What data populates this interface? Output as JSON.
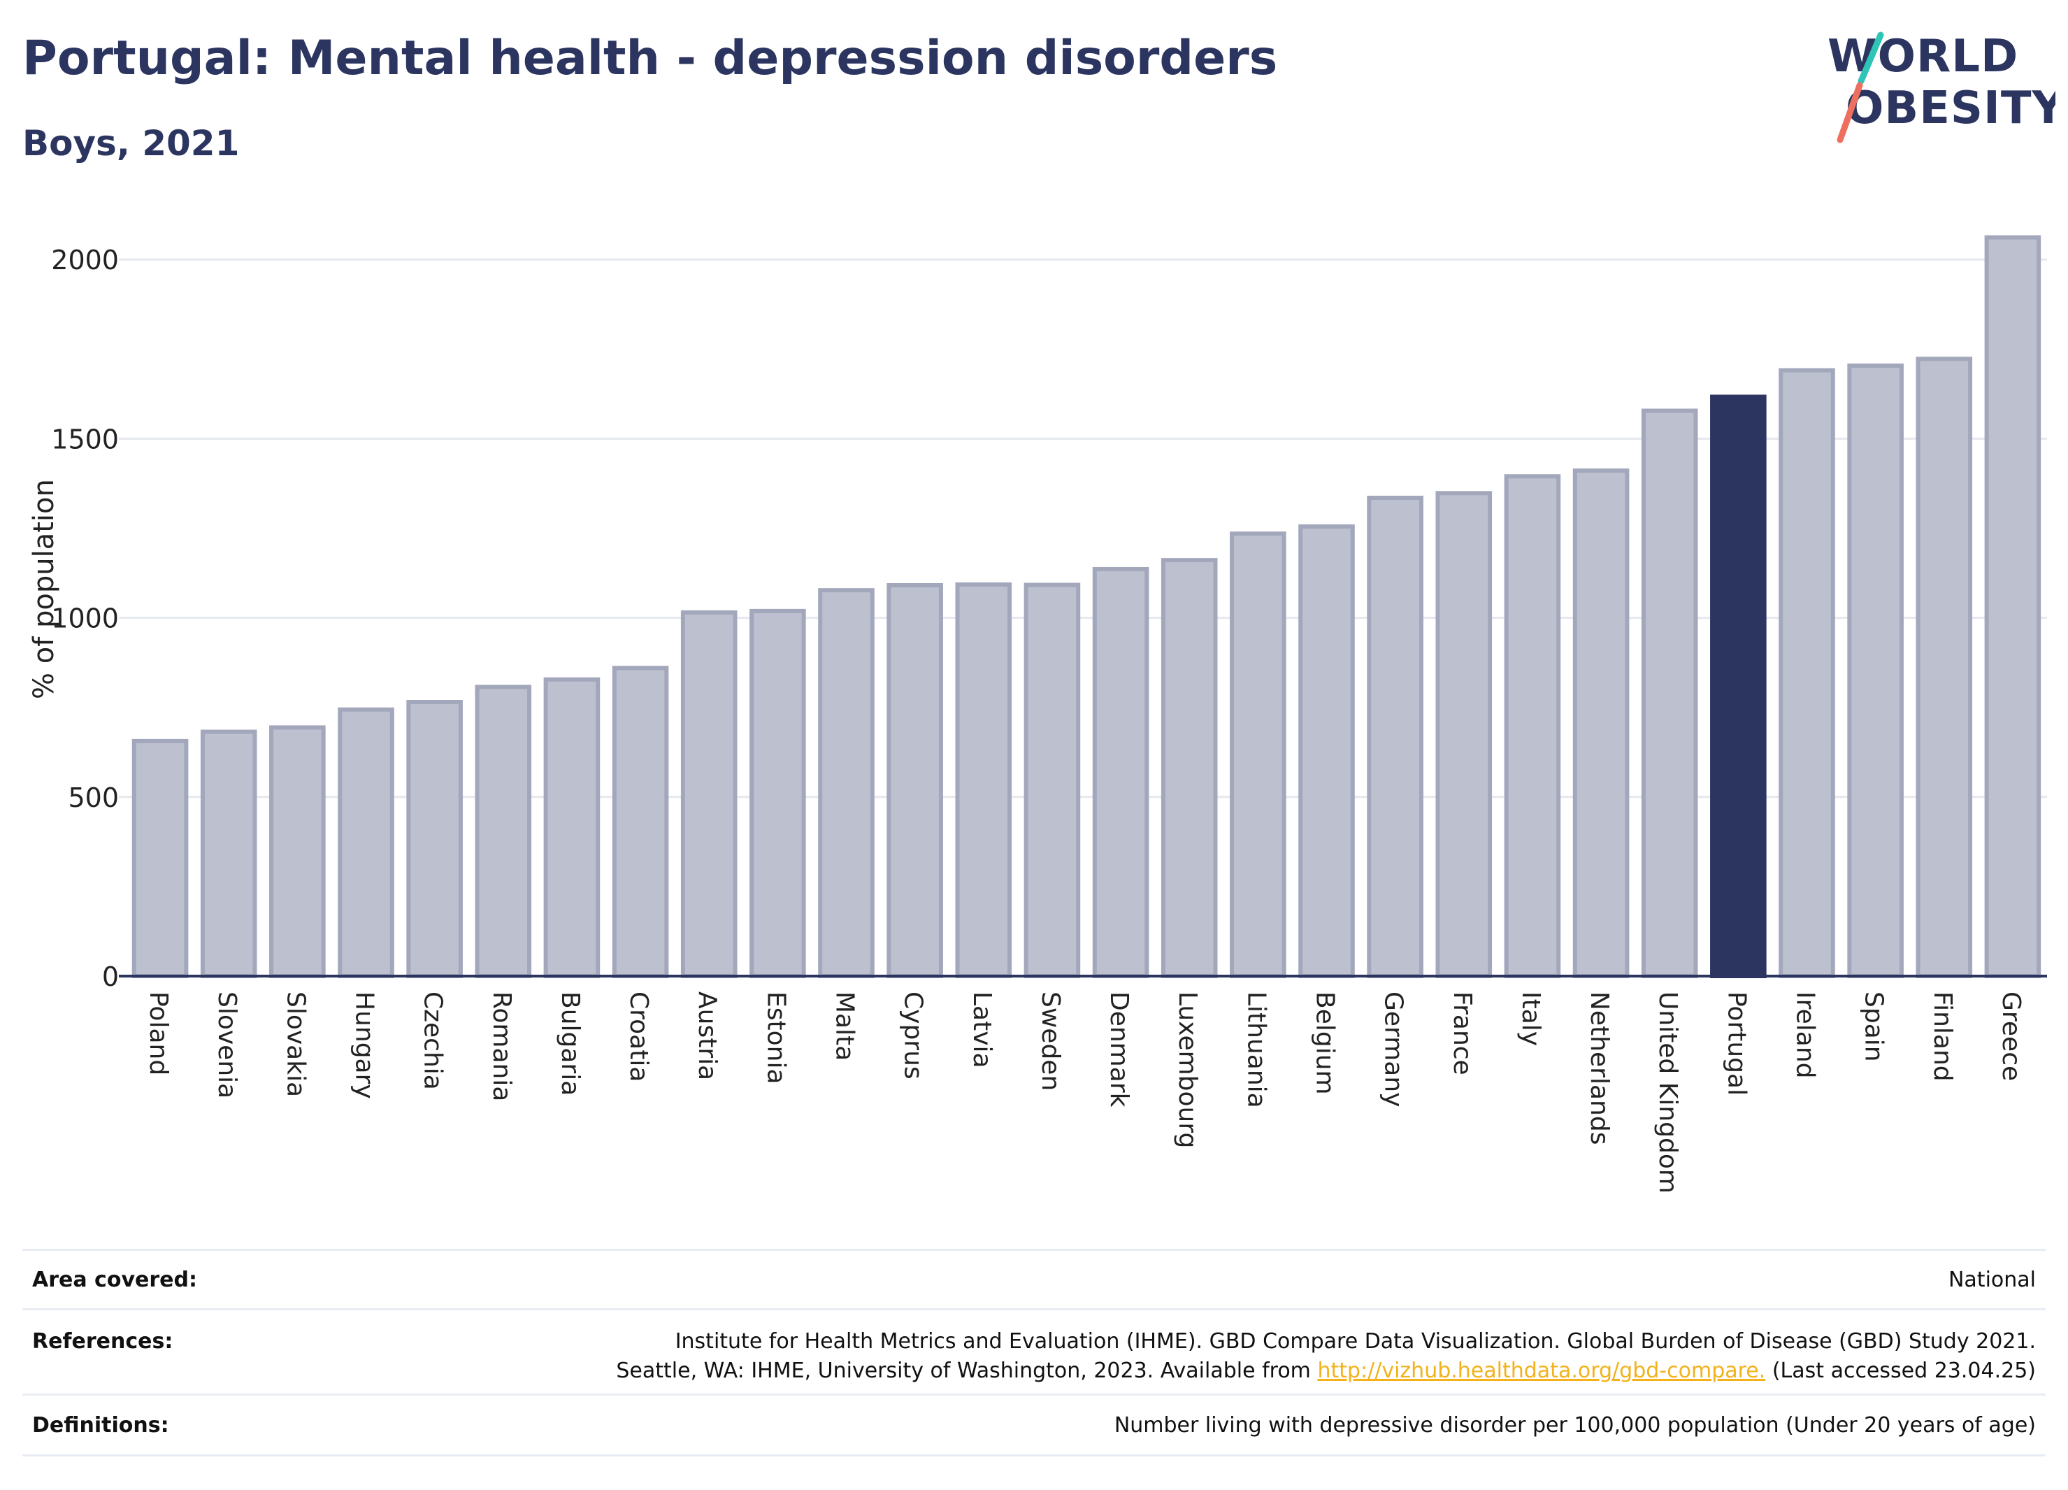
{
  "header": {
    "title": "Portugal: Mental health - depression disorders",
    "subtitle": "Boys, 2021"
  },
  "logo": {
    "line1": "WORLD",
    "line2": "OBESITY"
  },
  "colors": {
    "highlight": "#2b3560",
    "bar_fill": "#bcc0cf",
    "bar_stroke": "#a2a7bb",
    "text": "#2b3560"
  },
  "chart_data": {
    "type": "bar",
    "ylabel": "% of population",
    "ylim": [
      0,
      2100
    ],
    "yticks": [
      0,
      500,
      1000,
      1500,
      2000
    ],
    "grid": true,
    "highlight": "Portugal",
    "categories": [
      "Poland",
      "Slovenia",
      "Slovakia",
      "Hungary",
      "Czechia",
      "Romania",
      "Bulgaria",
      "Croatia",
      "Austria",
      "Estonia",
      "Malta",
      "Cyprus",
      "Latvia",
      "Sweden",
      "Denmark",
      "Luxembourg",
      "Lithuania",
      "Belgium",
      "Germany",
      "France",
      "Italy",
      "Netherlands",
      "United Kingdom",
      "Portugal",
      "Ireland",
      "Spain",
      "Finland",
      "Greece"
    ],
    "values": [
      656,
      682,
      694,
      744,
      765,
      807,
      828,
      860,
      1015,
      1019,
      1077,
      1091,
      1093,
      1092,
      1136,
      1161,
      1235,
      1255,
      1335,
      1348,
      1395,
      1411,
      1578,
      1617,
      1691,
      1704,
      1723,
      2062
    ]
  },
  "footer": {
    "area_label": "Area covered:",
    "area_value": "National",
    "references_label": "References:",
    "references_line1": "Institute for Health Metrics and Evaluation (IHME). GBD Compare Data Visualization. Global Burden of Disease (GBD) Study 2021.",
    "references_line2_pre": "Seattle, WA: IHME, University of Washington, 2023. Available from ",
    "references_link": "http://vizhub.healthdata.org/gbd-compare.",
    "references_line2_post": " (Last accessed 23.04.25)",
    "definitions_label": "Definitions:",
    "definitions_value": "Number living with depressive disorder per 100,000 population (Under 20 years of age)"
  }
}
